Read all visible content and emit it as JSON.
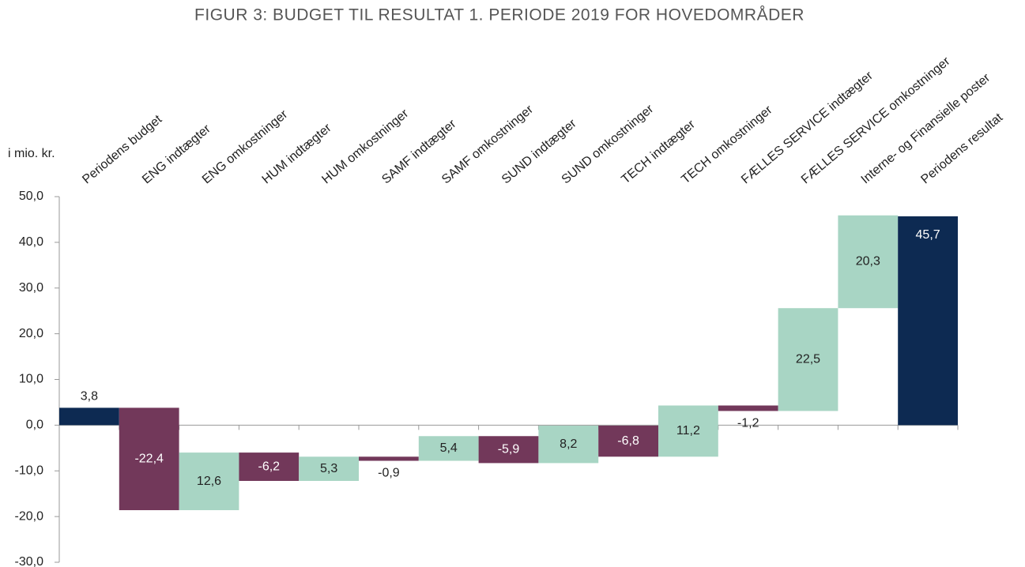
{
  "chart_data": {
    "type": "waterfall",
    "title": "FIGUR 3: BUDGET TIL RESULTAT 1. PERIODE 2019 FOR HOVEDOMRÅDER",
    "y_axis_label": "i mio. kr.",
    "categories": [
      "Periodens budget",
      "ENG indtægter",
      "ENG omkostninger",
      "HUM indtægter",
      "HUM omkostninger",
      "SAMF indtægter",
      "SAMF omkostninger",
      "SUND indtægter",
      "SUND omkostninger",
      "TECH indtægter",
      "TECH omkostninger",
      "FÆLLES SERVICE indtægter",
      "FÆLLES SERVICE omkostninger",
      "Interne- og Finansielle poster",
      "Periodens resultat"
    ],
    "values": [
      3.8,
      -22.4,
      12.6,
      -6.2,
      5.3,
      -0.9,
      5.4,
      -5.9,
      8.2,
      -6.8,
      11.2,
      -1.2,
      22.5,
      20.3,
      45.7
    ],
    "value_labels": [
      "3,8",
      "-22,4",
      "12,6",
      "-6,2",
      "5,3",
      "-0,9",
      "5,4",
      "-5,9",
      "8,2",
      "-6,8",
      "11,2",
      "-1,2",
      "22,5",
      "20,3",
      "45,7"
    ],
    "totals": [
      0,
      14
    ],
    "total_color": "#0d2a52",
    "increase_color": "#a8d5c4",
    "decrease_color": "#72385a",
    "ylim": [
      -30,
      50
    ],
    "yticks": [
      {
        "value": -30,
        "label": "-30,0"
      },
      {
        "value": -20,
        "label": "-20,0"
      },
      {
        "value": -10,
        "label": "-10,0"
      },
      {
        "value": 0,
        "label": "0,0"
      },
      {
        "value": 10,
        "label": "10,0"
      },
      {
        "value": 20,
        "label": "20,0"
      },
      {
        "value": 30,
        "label": "30,0"
      },
      {
        "value": 40,
        "label": "40,0"
      },
      {
        "value": 50,
        "label": "50,0"
      }
    ],
    "grid": false
  }
}
